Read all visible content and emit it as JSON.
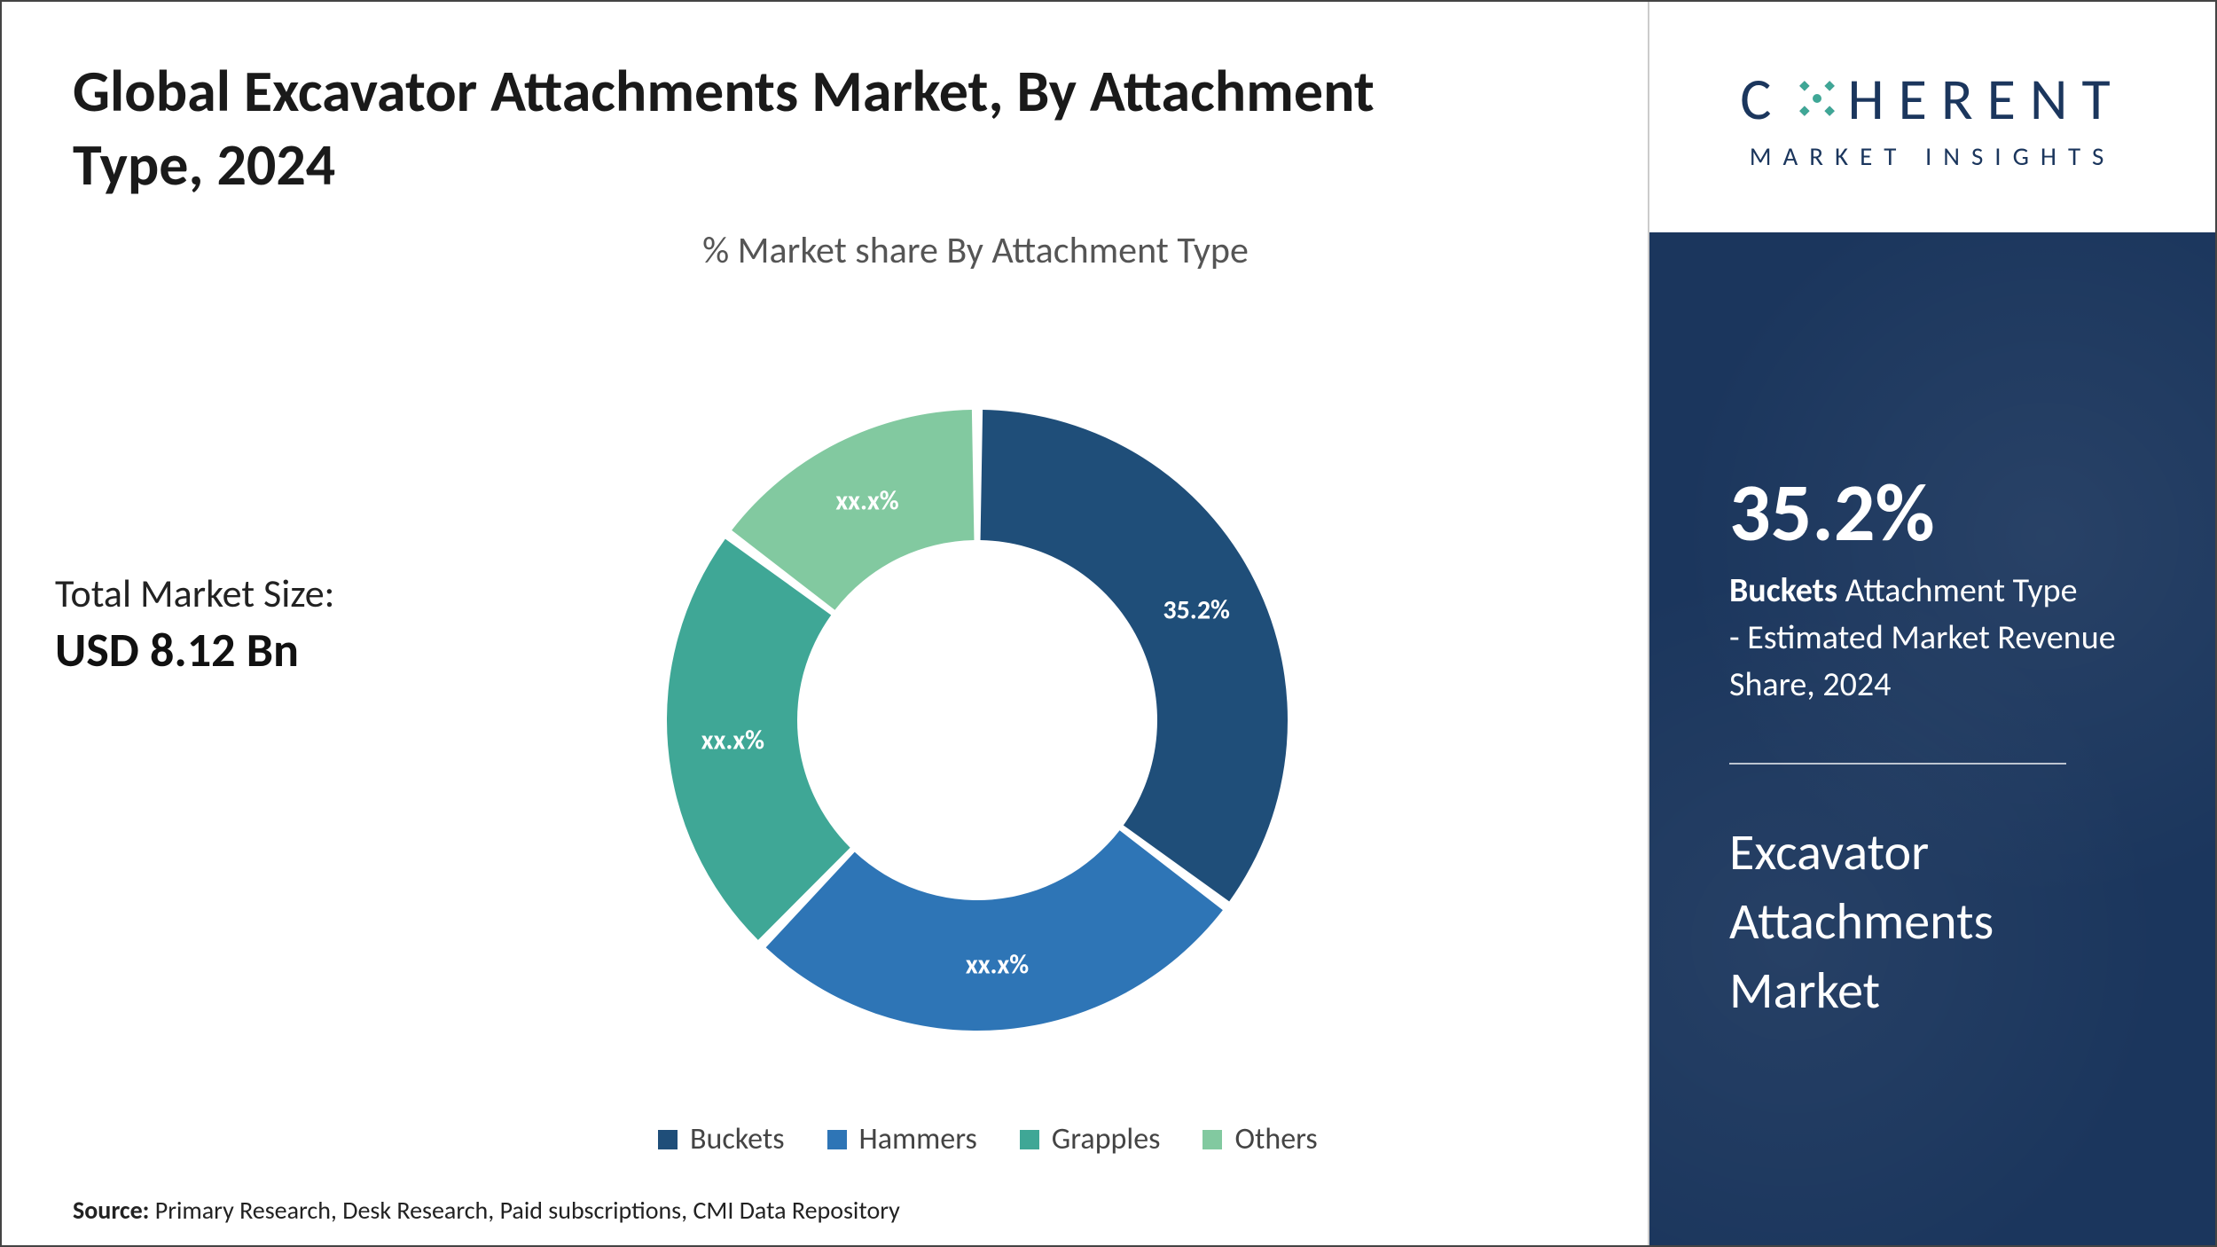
{
  "title": "Global Excavator Attachments Market, By Attachment Type, 2024",
  "subtitle": "% Market share By Attachment Type",
  "market_size": {
    "label": "Total Market Size:",
    "value": "USD 8.12 Bn"
  },
  "chart": {
    "type": "donut",
    "inner_radius_ratio": 0.58,
    "gap_deg": 2,
    "background_color": "#ffffff",
    "series": [
      {
        "name": "Buckets",
        "value": 35.2,
        "label": "35.2%",
        "color": "#1f4e79"
      },
      {
        "name": "Hammers",
        "value": 27.0,
        "label": "xx.x%",
        "color": "#2e75b6"
      },
      {
        "name": "Grapples",
        "value": 23.0,
        "label": "xx.x%",
        "color": "#3fa796"
      },
      {
        "name": "Others",
        "value": 14.8,
        "label": "xx.x%",
        "color": "#82c9a0"
      }
    ],
    "label_fontsize": 30,
    "label_color": "#ffffff"
  },
  "legend": {
    "fontsize": 34,
    "color": "#444444",
    "items": [
      {
        "label": "Buckets",
        "color": "#1f4e79"
      },
      {
        "label": "Hammers",
        "color": "#2e75b6"
      },
      {
        "label": "Grapples",
        "color": "#3fa796"
      },
      {
        "label": "Others",
        "color": "#82c9a0"
      }
    ]
  },
  "source": {
    "prefix": "Source: ",
    "text": "Primary Research, Desk Research, Paid subscriptions, CMI Data Repository"
  },
  "logo": {
    "line1_pre": "C",
    "line1_post": "HERENT",
    "line2": "MARKET  INSIGHTS",
    "brand_color": "#1b365d",
    "accent_color": "#3fa796"
  },
  "side_panel": {
    "background": "#1b365d",
    "percent": "35.2%",
    "desc_bold": "Buckets",
    "desc_rest_1": " Attachment Type",
    "desc_rest_2": "- Estimated Market Revenue Share, 2024",
    "title": "Excavator Attachments Market"
  }
}
